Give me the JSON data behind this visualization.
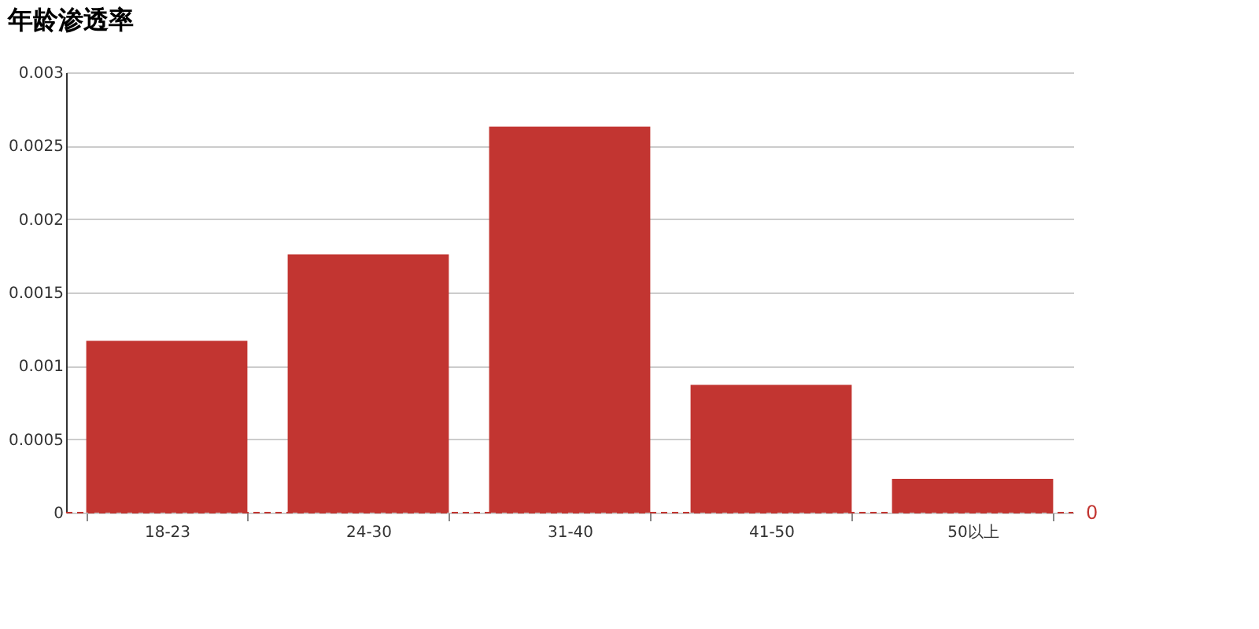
{
  "chart_data": {
    "type": "bar",
    "title": "年龄渗透率",
    "categories": [
      "18-23",
      "24-30",
      "31-40",
      "41-50",
      "50以上"
    ],
    "series": [
      {
        "color": "#c23531",
        "values": [
          0.00117,
          0.00176,
          0.00263,
          0.00087,
          0.00023
        ]
      }
    ],
    "ylim": [
      0,
      0.003
    ],
    "yticks": [
      0,
      0.0005,
      0.001,
      0.0015,
      0.002,
      0.0025,
      0.003
    ],
    "grid": "y",
    "ref_lines": [
      {
        "axis": "y",
        "value": 0,
        "label": "0",
        "color": "#c23531",
        "line_style": "dashed"
      }
    ]
  }
}
